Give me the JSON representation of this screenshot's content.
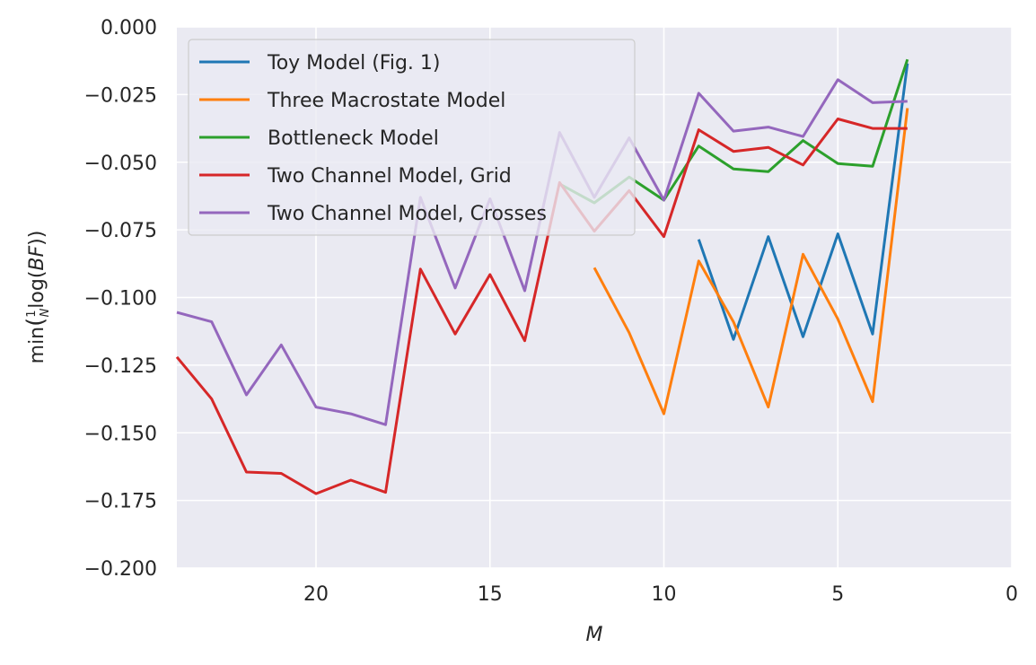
{
  "chart_data": {
    "type": "line",
    "title": "",
    "xlabel": "M",
    "ylabel_parts": {
      "pre": "min",
      "frac_num": "1",
      "frac_den": "N",
      "mid": "log(",
      "italic": "BF",
      "post": "))"
    },
    "xlim": [
      24,
      0
    ],
    "ylim": [
      -0.2,
      0.0
    ],
    "x_inverted": true,
    "grid": true,
    "legend_position": "upper-left",
    "x_ticks": [
      20,
      15,
      10,
      5,
      0
    ],
    "x_tick_labels": [
      "20",
      "15",
      "10",
      "5",
      "0"
    ],
    "y_ticks": [
      0.0,
      -0.025,
      -0.05,
      -0.075,
      -0.1,
      -0.125,
      -0.15,
      -0.175,
      -0.2
    ],
    "y_tick_labels": [
      "0.000",
      "−0.025",
      "−0.050",
      "−0.075",
      "−0.100",
      "−0.125",
      "−0.150",
      "−0.175",
      "−0.200"
    ],
    "series": [
      {
        "name": "Toy Model (Fig. 1)",
        "color": "#1f77b4",
        "x": [
          9,
          8,
          7,
          6,
          5,
          4,
          3
        ],
        "y": [
          -0.0785,
          -0.1155,
          -0.0775,
          -0.1145,
          -0.0765,
          -0.1135,
          -0.0135
        ]
      },
      {
        "name": "Three Macrostate Model",
        "color": "#ff7f0e",
        "x": [
          12,
          11,
          10,
          9,
          8,
          7,
          6,
          5,
          4,
          3
        ],
        "y": [
          -0.089,
          -0.113,
          -0.143,
          -0.0865,
          -0.109,
          -0.1405,
          -0.084,
          -0.108,
          -0.1385,
          -0.03
        ]
      },
      {
        "name": "Bottleneck Model",
        "color": "#2ca02c",
        "x": [
          13,
          12,
          11,
          10,
          9,
          8,
          7,
          6,
          5,
          4,
          3
        ],
        "y": [
          -0.058,
          -0.065,
          -0.0555,
          -0.064,
          -0.044,
          -0.0525,
          -0.0535,
          -0.042,
          -0.0505,
          -0.0515,
          -0.012
        ]
      },
      {
        "name": "Two Channel Model, Grid",
        "color": "#d62728",
        "x": [
          24,
          23,
          22,
          21,
          20,
          19,
          18,
          17,
          16,
          15,
          14,
          13,
          12,
          11,
          10,
          9,
          8,
          7,
          6,
          5,
          4,
          3
        ],
        "y": [
          -0.122,
          -0.1375,
          -0.1645,
          -0.165,
          -0.1725,
          -0.1675,
          -0.172,
          -0.0895,
          -0.1135,
          -0.0915,
          -0.116,
          -0.0575,
          -0.0755,
          -0.0605,
          -0.0775,
          -0.038,
          -0.046,
          -0.0445,
          -0.051,
          -0.034,
          -0.0375,
          -0.0375
        ]
      },
      {
        "name": "Two Channel Model, Crosses",
        "color": "#9467bd",
        "x": [
          24,
          23,
          22,
          21,
          20,
          19,
          18,
          17,
          16,
          15,
          14,
          13,
          12,
          11,
          10,
          9,
          8,
          7,
          6,
          5,
          4,
          3
        ],
        "y": [
          -0.1055,
          -0.109,
          -0.136,
          -0.1175,
          -0.1405,
          -0.143,
          -0.147,
          -0.063,
          -0.0965,
          -0.0635,
          -0.0975,
          -0.039,
          -0.063,
          -0.041,
          -0.064,
          -0.0245,
          -0.0385,
          -0.037,
          -0.0405,
          -0.0195,
          -0.028,
          -0.0275
        ]
      }
    ]
  }
}
